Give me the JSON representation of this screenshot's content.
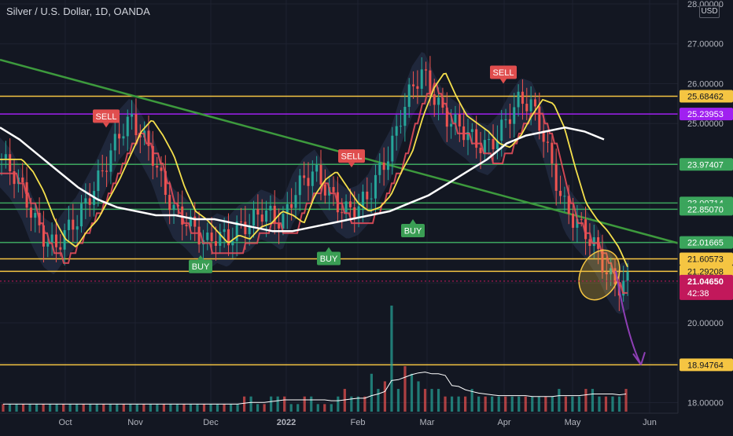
{
  "header": {
    "symbol_title": "Silver / U.S. Dollar, 1D, OANDA",
    "currency_badge": "USD"
  },
  "colors": {
    "background": "#131722",
    "grid": "#1e2230",
    "up": "#26a69a",
    "down": "#ef5350",
    "yellow_level": "#f5c542",
    "purple_level": "#a020f0",
    "green_level": "#3ba55c",
    "orange_level": "#f29a24",
    "sell_badge": "#e04e4e",
    "buy_badge": "#3a9e54",
    "supertrend_up": "#2fbf71",
    "supertrend_down": "#e14c5a",
    "fast_ma": "#f5e04c",
    "slow_ma": "#ffffff",
    "trendline": "#3d9a3d",
    "arrow": "#8e3fb5",
    "last_price": "#c2185b",
    "countdown": "#7b1140"
  },
  "chart_data": {
    "type": "line",
    "title": "Silver / U.S. Dollar, 1D, OANDA",
    "xlabel": "",
    "ylabel": "",
    "x_axis": [
      "Oct",
      "Nov",
      "Dec",
      "2022",
      "Feb",
      "Mar",
      "Apr",
      "May",
      "Jun"
    ],
    "ylim": [
      17.3,
      28.0
    ],
    "y_ticks": [
      "28.00000",
      "27.00000",
      "26.00000",
      "25.00000",
      "24.00000",
      "23.00000",
      "22.00000",
      "21.00000",
      "20.00000",
      "19.00000",
      "18.00000"
    ],
    "horizontal_levels": [
      {
        "value": 25.68462,
        "label": "25.68462",
        "color": "yellow"
      },
      {
        "value": 25.23953,
        "label": "25.23953",
        "color": "purple"
      },
      {
        "value": 23.97407,
        "label": "23.97407",
        "color": "green"
      },
      {
        "value": 23.00714,
        "label": "23.00714",
        "color": "green"
      },
      {
        "value": 22.8507,
        "label": "22.85070",
        "color": "green"
      },
      {
        "value": 22.01665,
        "label": "22.01665",
        "color": "green"
      },
      {
        "value": 21.60573,
        "label": "21.60573",
        "color": "yellow"
      },
      {
        "value": 21.29208,
        "label": "21.29208",
        "color": "yellow"
      },
      {
        "value": 18.94764,
        "label": "18.94764",
        "color": "yellow"
      }
    ],
    "last_price": {
      "value": 21.0465,
      "label": "21.04650",
      "countdown": "42:38"
    },
    "signals": [
      {
        "label": "SELL",
        "date": "late Nov",
        "price": 24.9
      },
      {
        "label": "BUY",
        "date": "early Oct",
        "price": 21.7
      },
      {
        "label": "SELL",
        "date": "late Jan",
        "price": 23.9
      },
      {
        "label": "BUY",
        "date": "mid Jan",
        "price": 21.9
      },
      {
        "label": "BUY",
        "date": "early Feb",
        "price": 22.6
      },
      {
        "label": "SELL",
        "date": "early Apr",
        "price": 26.0
      }
    ],
    "trendline": {
      "start": 26.6,
      "end": 22.0
    },
    "close_series": [
      24.1,
      23.8,
      23.3,
      22.6,
      22.1,
      21.9,
      22.3,
      22.6,
      23.1,
      23.6,
      24.2,
      24.8,
      25.1,
      24.7,
      24.2,
      23.4,
      22.8,
      22.6,
      22.3,
      22.0,
      22.2,
      22.1,
      22.4,
      22.5,
      22.8,
      22.7,
      22.5,
      23.2,
      23.6,
      23.8,
      23.4,
      23.0,
      22.8,
      22.9,
      23.2,
      23.8,
      24.3,
      25.2,
      25.9,
      26.3,
      25.7,
      25.2,
      25.0,
      24.8,
      24.5,
      24.4,
      24.7,
      25.2,
      25.6,
      25.5,
      24.9,
      23.9,
      23.0,
      22.6,
      22.3,
      21.9,
      21.3,
      20.9,
      21.05
    ],
    "slow_ma_series": [
      24.9,
      24.6,
      24.2,
      23.8,
      23.4,
      23.1,
      22.9,
      22.8,
      22.7,
      22.7,
      22.6,
      22.6,
      22.5,
      22.4,
      22.3,
      22.3,
      22.4,
      22.5,
      22.6,
      22.7,
      22.8,
      23.0,
      23.2,
      23.5,
      23.8,
      24.1,
      24.5,
      24.7,
      24.8,
      24.9,
      24.8,
      24.6
    ],
    "volume_series": [
      1,
      1,
      1,
      1,
      1,
      1,
      1,
      1,
      1,
      1,
      1,
      1,
      1,
      1,
      1,
      1,
      1,
      1,
      1,
      1,
      1,
      1,
      1,
      1,
      1,
      1,
      1,
      1,
      1,
      1,
      1,
      1,
      1,
      1,
      1,
      1,
      2,
      2,
      1,
      1,
      2,
      2,
      2,
      1,
      1,
      2,
      2,
      1,
      1,
      1,
      2,
      3,
      2,
      2,
      2,
      5,
      3,
      4,
      14,
      3,
      6,
      5,
      4,
      3,
      3,
      3,
      2,
      2,
      2,
      2,
      3,
      2,
      2,
      2,
      2,
      2,
      2,
      2,
      2,
      2,
      2,
      2,
      2,
      3,
      2,
      2,
      2,
      3,
      3,
      2,
      2,
      2,
      2,
      3
    ]
  }
}
